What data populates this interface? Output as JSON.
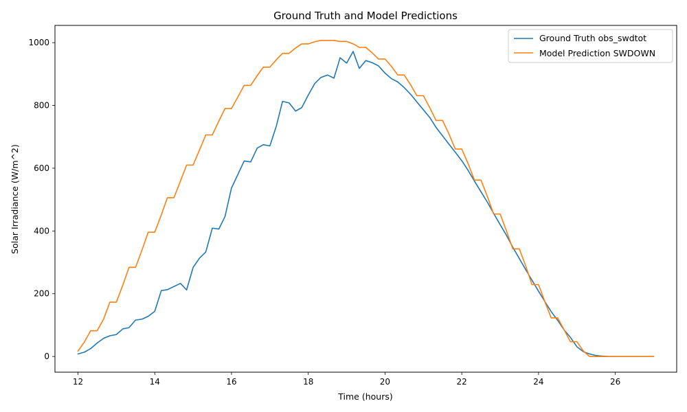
{
  "chart_data": {
    "type": "line",
    "title": "Ground Truth and Model Predictions",
    "xlabel": "Time (hours)",
    "ylabel": "Solar Irradiance (W/m^2)",
    "xlim": [
      11.4,
      27.6
    ],
    "ylim": [
      -50,
      1055
    ],
    "xticks": [
      12,
      14,
      16,
      18,
      20,
      22,
      24,
      26
    ],
    "yticks": [
      0,
      200,
      400,
      600,
      800,
      1000
    ],
    "grid": false,
    "legend_position": "top-right",
    "series": [
      {
        "name": "Ground Truth obs_swdtot",
        "color": "#1f77b4",
        "x": [
          12.0,
          12.17,
          12.33,
          12.5,
          12.67,
          12.83,
          13.0,
          13.17,
          13.33,
          13.5,
          13.67,
          13.83,
          14.0,
          14.17,
          14.33,
          14.5,
          14.67,
          14.83,
          15.0,
          15.17,
          15.33,
          15.5,
          15.67,
          15.83,
          16.0,
          16.17,
          16.33,
          16.5,
          16.67,
          16.83,
          17.0,
          17.17,
          17.33,
          17.5,
          17.67,
          17.83,
          18.0,
          18.17,
          18.33,
          18.5,
          18.67,
          18.83,
          19.0,
          19.17,
          19.33,
          19.5,
          19.67,
          19.83,
          20.0,
          20.17,
          20.33,
          20.5,
          20.67,
          20.83,
          21.0,
          21.17,
          21.33,
          21.5,
          21.67,
          21.83,
          22.0,
          22.17,
          22.33,
          22.5,
          22.67,
          22.83,
          23.0,
          23.17,
          23.33,
          23.5,
          23.67,
          23.83,
          24.0,
          24.17,
          24.33,
          24.5,
          24.67,
          24.83,
          25.0,
          25.17,
          25.33,
          25.5,
          25.67,
          25.83,
          26.0,
          26.5,
          27.0
        ],
        "values": [
          8,
          14,
          25,
          43,
          58,
          66,
          70,
          88,
          92,
          116,
          119,
          128,
          144,
          210,
          213,
          223,
          233,
          212,
          284,
          314,
          333,
          409,
          406,
          446,
          537,
          581,
          623,
          620,
          664,
          675,
          671,
          735,
          813,
          808,
          782,
          793,
          833,
          870,
          889,
          897,
          887,
          952,
          935,
          972,
          918,
          943,
          936,
          926,
          903,
          885,
          875,
          857,
          835,
          811,
          786,
          761,
          730,
          703,
          676,
          651,
          624,
          592,
          559,
          525,
          491,
          456,
          420,
          385,
          348,
          312,
          276,
          243,
          208,
          174,
          143,
          115,
          84,
          61,
          31,
          15,
          8,
          3,
          1,
          0,
          0,
          0,
          0
        ]
      },
      {
        "name": "Model Prediction SWDOWN",
        "color": "#ff7f0e",
        "x": [
          12.0,
          12.17,
          12.33,
          12.5,
          12.67,
          12.83,
          13.0,
          13.17,
          13.33,
          13.5,
          13.67,
          13.83,
          14.0,
          14.17,
          14.33,
          14.5,
          14.67,
          14.83,
          15.0,
          15.17,
          15.33,
          15.5,
          15.67,
          15.83,
          16.0,
          16.17,
          16.33,
          16.5,
          16.67,
          16.83,
          17.0,
          17.17,
          17.33,
          17.5,
          17.67,
          17.83,
          18.0,
          18.17,
          18.33,
          18.5,
          18.67,
          18.83,
          19.0,
          19.17,
          19.33,
          19.5,
          19.67,
          19.83,
          20.0,
          20.17,
          20.33,
          20.5,
          20.67,
          20.83,
          21.0,
          21.17,
          21.33,
          21.5,
          21.67,
          21.83,
          22.0,
          22.17,
          22.33,
          22.5,
          22.67,
          22.83,
          23.0,
          23.17,
          23.33,
          23.5,
          23.67,
          23.83,
          24.0,
          24.17,
          24.33,
          24.5,
          24.67,
          24.83,
          25.0,
          25.17,
          25.33,
          25.5,
          25.67,
          25.83,
          26.0,
          26.5,
          27.0
        ],
        "values": [
          17,
          47,
          82,
          82,
          120,
          173,
          173,
          228,
          284,
          284,
          340,
          396,
          396,
          451,
          506,
          506,
          559,
          610,
          610,
          659,
          706,
          706,
          750,
          790,
          790,
          828,
          864,
          864,
          895,
          922,
          922,
          946,
          966,
          966,
          983,
          996,
          996,
          1003,
          1007,
          1007,
          1007,
          1004,
          1004,
          996,
          985,
          985,
          967,
          948,
          948,
          924,
          897,
          897,
          865,
          831,
          831,
          792,
          752,
          752,
          708,
          661,
          661,
          613,
          562,
          562,
          509,
          454,
          454,
          398,
          343,
          343,
          287,
          229,
          229,
          173,
          123,
          123,
          84,
          47,
          47,
          17,
          0,
          0,
          0,
          0,
          0,
          0,
          0
        ]
      }
    ]
  }
}
